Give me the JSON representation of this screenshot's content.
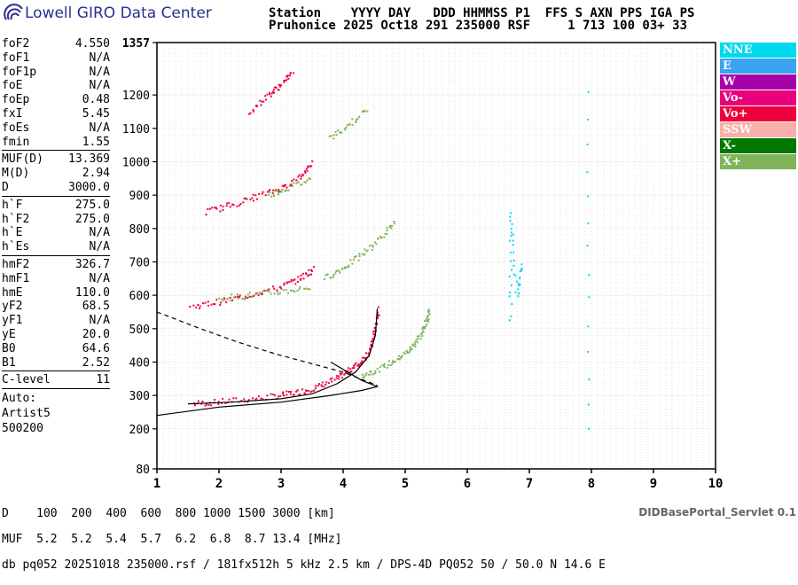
{
  "logo_text": "Lowell GIRO Data Center",
  "header": {
    "line1": "Station    YYYY DAY   DDD HHMMSS P1  FFS S AXN PPS IGA PS",
    "line2": "Pruhonice 2025 Oct18 291 235000 RSF     1 713 100 03+ 33"
  },
  "params": [
    {
      "label": "foF2",
      "value": "4.550"
    },
    {
      "label": "foF1",
      "value": "N/A"
    },
    {
      "label": "foF1p",
      "value": "N/A"
    },
    {
      "label": "foE",
      "value": "N/A"
    },
    {
      "label": "foEp",
      "value": "0.48"
    },
    {
      "label": "fxI",
      "value": "5.45"
    },
    {
      "label": "foEs",
      "value": "N/A"
    },
    {
      "label": "fmin",
      "value": "1.55"
    },
    {
      "sep": true
    },
    {
      "label": "MUF(D)",
      "value": "13.369"
    },
    {
      "label": "M(D)",
      "value": "2.94"
    },
    {
      "label": "D",
      "value": "3000.0"
    },
    {
      "sep": true
    },
    {
      "label": "h`F",
      "value": "275.0"
    },
    {
      "label": "h`F2",
      "value": "275.0"
    },
    {
      "label": "h`E",
      "value": "N/A"
    },
    {
      "label": "h`Es",
      "value": "N/A"
    },
    {
      "sep": true
    },
    {
      "label": "hmF2",
      "value": "326.7"
    },
    {
      "label": "hmF1",
      "value": "N/A"
    },
    {
      "label": "hmE",
      "value": "110.0"
    },
    {
      "label": "yF2",
      "value": "68.5"
    },
    {
      "label": "yF1",
      "value": "N/A"
    },
    {
      "label": "yE",
      "value": "20.0"
    },
    {
      "label": "B0",
      "value": "64.6"
    },
    {
      "label": "B1",
      "value": "2.52"
    },
    {
      "sep": true
    },
    {
      "label": "C-level",
      "value": "11"
    },
    {
      "sep": true
    }
  ],
  "auto": [
    "Auto:",
    "Artist5",
    "500200"
  ],
  "legend": [
    {
      "label": "NNE",
      "color": "#00d8f0"
    },
    {
      "label": "E",
      "color": "#3aa4f0"
    },
    {
      "label": "W",
      "color": "#a800a8"
    },
    {
      "label": "Vo-",
      "color": "#e8007c"
    },
    {
      "label": "Vo+",
      "color": "#f0003c"
    },
    {
      "label": "SSW",
      "color": "#f8b0a8"
    },
    {
      "label": "X-",
      "color": "#007800"
    },
    {
      "label": "X+",
      "color": "#80b45a"
    }
  ],
  "bottom": {
    "line1": "D    100  200  400  600  800 1000 1500 3000 [km]",
    "line2": "MUF  5.2  5.2  5.4  5.7  6.2  6.8  8.7 13.4 [MHz]",
    "line3": "db pq052 20251018 235000.rsf / 181fx512h 5 kHz 2.5 km / DPS-4D PQ052 50 / 50.0 N 14.6 E"
  },
  "servlet": "DIDBasePortal_Servlet 0.1",
  "chart_data": {
    "type": "scatter",
    "xlim": [
      1,
      10
    ],
    "ylim": [
      80,
      1357
    ],
    "x_ticks": [
      1,
      2,
      3,
      4,
      5,
      6,
      7,
      8,
      9,
      10
    ],
    "y_ticks": [
      80,
      200,
      300,
      400,
      500,
      600,
      700,
      800,
      900,
      1000,
      1100,
      1200,
      1357
    ],
    "grid": true,
    "traces": [
      {
        "name": "Vo+",
        "points": [
          [
            1.6,
            275
          ],
          [
            2.0,
            280
          ],
          [
            2.5,
            288
          ],
          [
            3.0,
            300
          ],
          [
            3.3,
            310
          ],
          [
            3.6,
            325
          ],
          [
            3.9,
            350
          ],
          [
            4.1,
            375
          ],
          [
            4.3,
            400
          ],
          [
            4.45,
            440
          ],
          [
            4.52,
            500
          ],
          [
            4.58,
            560
          ]
        ]
      },
      {
        "name": "X+",
        "points": [
          [
            4.3,
            360
          ],
          [
            4.6,
            380
          ],
          [
            4.9,
            410
          ],
          [
            5.1,
            440
          ],
          [
            5.25,
            480
          ],
          [
            5.35,
            520
          ],
          [
            5.4,
            560
          ]
        ]
      },
      {
        "name": "Vo+",
        "points": [
          [
            1.55,
            565
          ],
          [
            2.0,
            580
          ],
          [
            2.5,
            600
          ],
          [
            3.0,
            625
          ],
          [
            3.3,
            650
          ],
          [
            3.55,
            680
          ]
        ]
      },
      {
        "name": "X+",
        "points": [
          [
            2.0,
            590
          ],
          [
            2.5,
            600
          ],
          [
            3.0,
            610
          ],
          [
            3.5,
            625
          ]
        ]
      },
      {
        "name": "X+",
        "points": [
          [
            3.7,
            650
          ],
          [
            4.0,
            680
          ],
          [
            4.3,
            720
          ],
          [
            4.6,
            770
          ],
          [
            4.85,
            820
          ]
        ]
      },
      {
        "name": "Vo+",
        "points": [
          [
            1.8,
            850
          ],
          [
            2.2,
            870
          ],
          [
            2.6,
            895
          ],
          [
            3.0,
            920
          ],
          [
            3.3,
            950
          ],
          [
            3.5,
            1000
          ]
        ]
      },
      {
        "name": "X+",
        "points": [
          [
            2.8,
            900
          ],
          [
            3.1,
            920
          ],
          [
            3.5,
            950
          ]
        ]
      },
      {
        "name": "Vo+",
        "points": [
          [
            2.5,
            1150
          ],
          [
            2.8,
            1200
          ],
          [
            3.0,
            1230
          ],
          [
            3.2,
            1270
          ]
        ]
      },
      {
        "name": "X+",
        "points": [
          [
            3.8,
            1070
          ],
          [
            4.1,
            1110
          ],
          [
            4.4,
            1160
          ]
        ]
      },
      {
        "name": "NNE",
        "points": [
          [
            6.7,
            520
          ],
          [
            6.7,
            850
          ],
          [
            6.8,
            600
          ],
          [
            6.9,
            700
          ]
        ]
      },
      {
        "name": "NNE",
        "points": [
          [
            7.95,
            200
          ],
          [
            7.95,
            1280
          ]
        ]
      }
    ],
    "curves": [
      {
        "name": "profile",
        "style": "solid",
        "points": [
          [
            1.0,
            240
          ],
          [
            2.0,
            265
          ],
          [
            3.0,
            280
          ],
          [
            3.8,
            300
          ],
          [
            4.3,
            315
          ],
          [
            4.55,
            326.7
          ],
          [
            4.3,
            345
          ],
          [
            3.8,
            400
          ]
        ]
      },
      {
        "name": "virtual-height",
        "style": "solid",
        "points": [
          [
            1.5,
            275
          ],
          [
            2.2,
            280
          ],
          [
            3.0,
            290
          ],
          [
            3.5,
            305
          ],
          [
            3.9,
            335
          ],
          [
            4.2,
            370
          ],
          [
            4.42,
            420
          ],
          [
            4.52,
            480
          ],
          [
            4.55,
            560
          ]
        ]
      },
      {
        "name": "muf-trace",
        "style": "dashed",
        "points": [
          [
            1.0,
            550
          ],
          [
            1.7,
            500
          ],
          [
            2.3,
            460
          ],
          [
            2.9,
            425
          ],
          [
            3.5,
            395
          ],
          [
            4.0,
            370
          ],
          [
            4.55,
            330
          ]
        ]
      }
    ]
  }
}
